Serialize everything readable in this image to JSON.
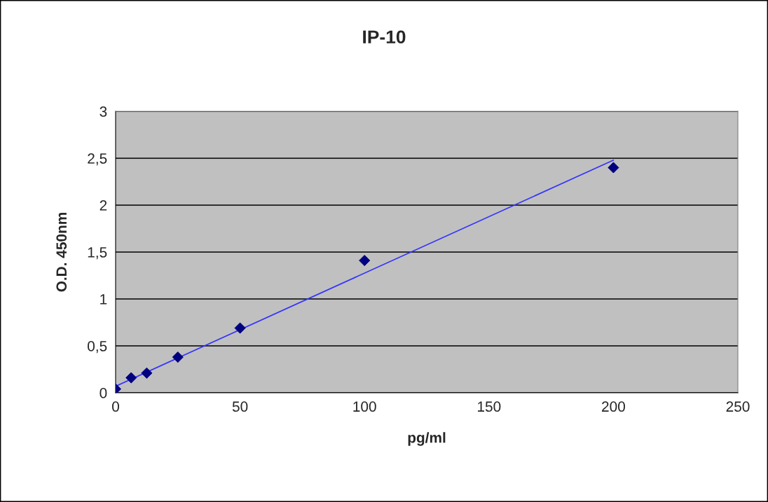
{
  "chart_data": {
    "type": "scatter",
    "title": "IP-10",
    "xlabel": "pg/ml",
    "ylabel": "O.D. 450nm",
    "x": [
      0,
      6.25,
      12.5,
      25,
      50,
      100,
      200
    ],
    "series": [
      {
        "color": "#000080",
        "marker": "diamond",
        "values": [
          0.04,
          0.16,
          0.21,
          0.38,
          0.69,
          1.41,
          2.4
        ]
      },
      {
        "type": "line",
        "color": "#3333ff",
        "x": [
          0,
          200
        ],
        "values": [
          0.07,
          2.48
        ],
        "marker": "none",
        "line_style": "solid"
      }
    ],
    "xlim": [
      0,
      250
    ],
    "xticks": [
      0,
      50,
      100,
      150,
      200,
      250
    ],
    "ylim": [
      0,
      3
    ],
    "yticks": [
      0,
      {
        "value": 0.5,
        "label": "0,5"
      },
      1,
      {
        "value": 1.5,
        "label": "1,5"
      },
      2,
      {
        "value": 2.5,
        "label": "2,5"
      },
      3
    ],
    "grid": "y",
    "legend": false
  }
}
